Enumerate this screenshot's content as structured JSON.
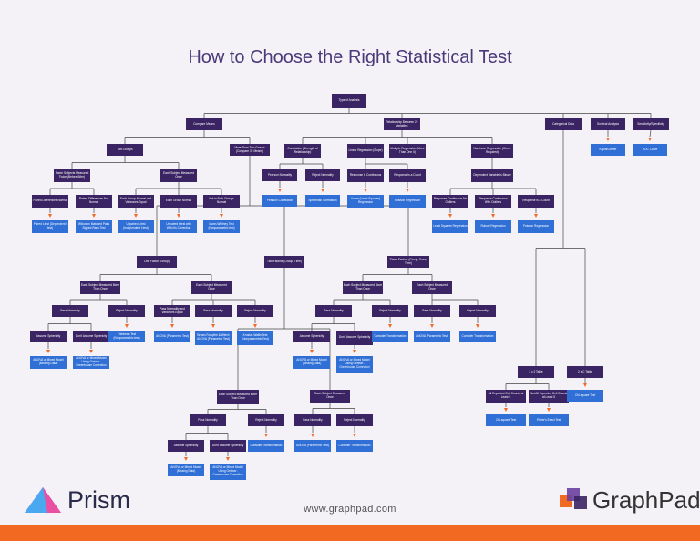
{
  "title": "How to Choose the Right Statistical Test",
  "url": "www.graphpad.com",
  "logos": {
    "prism": "Prism",
    "graphpad": "GraphPad"
  },
  "colors": {
    "node_dark": "#3b2463",
    "node_blue": "#2f6fd6",
    "accent": "#f26a21",
    "title": "#4a3a7a"
  },
  "nodes": {
    "root": "Type of Analysis",
    "compare_means": "Compare Means",
    "relationship": "Relationship Between 2+ Variables",
    "categorical": "Categorical Data",
    "survival": "Survival Analysis",
    "sens_spec": "Sensitivity/Specificity",
    "two_groups": "Two Groups",
    "more_than_two": "More Than Two Groups (Compare 3+ Means)",
    "correlation": "Correlation (Strength of Relationship)",
    "linreg": "Linear Regression (Slope)",
    "multreg": "Multiple Regression (More Than One X)",
    "nonlinreg": "Nonlinear Regression (Curve Required)",
    "kaplan": "Kaplan-Meier",
    "roc": "ROC Curve",
    "same_subj": "Same Subjects Measured Twice (Before/After)",
    "diff_subj": "Each Subject Measured Once",
    "pearson_norm": "Pearson Normality",
    "reject_norm_corr": "Reject Normality",
    "pearson": "Pearson Correlation",
    "spearman": "Spearman Correlation",
    "resp_continuous": "Response is Continuous",
    "resp_count": "Response is a Count",
    "linear_ls": "Linear (Least Squares) Regression",
    "poisson_reg_1": "Poisson Regression",
    "dep_binary": "Dependent Variable Is Binary",
    "resp_cont_2": "Response Continuous No Outliers",
    "resp_cont_out": "Response Continuous With Outliers",
    "resp_count_2": "Response is a Count",
    "least_sq": "Least Squares Regression",
    "robust_reg": "Robust Regression",
    "poisson_reg_2": "Poisson Regression",
    "paired_norm": "Paired Differences Normal",
    "paired_notnorm": "Paired Differences Not Normal",
    "paired_t": "Paired t-test (Dependent t test)",
    "wilcoxon": "Wilcoxon Matched Pairs Signed Rank Test",
    "equal_var": "Each Group Normal and Variances Equal",
    "unequal_var": "Each Group Normal",
    "not_normal_2": "Not in Both Groups Normal",
    "unpaired_t": "Unpaired t-test (Independent t test)",
    "welch_t": "Unpaired t-test with Welch's Correction",
    "mann_whitney": "Mann-Whitney Test (Nonparametric test)",
    "one_factor": "One Factor (Group)",
    "two_factors": "Two Factors (Group, Time)",
    "three_factors": "Three Factors (Group, Dose, Time)",
    "of_same": "Each Subject Measured More Than Once",
    "of_diff": "Each Subject Measured Once",
    "of_pass": "Pass Normality",
    "of_reject": "Reject Normality",
    "of_pass_eq": "Pass Normality and Variances Equal",
    "of_pass_2": "Pass Normality",
    "of_reject_2": "Reject Normality",
    "of_sph": "Assume Sphericity",
    "of_nosph": "Don't Assume Sphericity",
    "of_friedman": "Friedman Test (Nonparametric test)",
    "of_anova": "ANOVA (Parametric Test)",
    "of_brown": "Brown-Forsythe & Welch ANOVA (Parametric Test)",
    "of_kruskal": "Kruskal-Wallis Test (Nonparametric Test)",
    "of_rm1": "ANOVA or Mixed Model (Missing Data)",
    "of_rm2": "ANOVA or Mixed Model Using Geisser-Greenhouse Correction",
    "tf_same": "Each Subject Measured More Than Once",
    "tf_diff": "Each Subject Measured Once",
    "tf_pass": "Pass Normality",
    "tf_reject": "Reject Normality",
    "tf_pass_2": "Pass Normality",
    "tf_reject_2": "Reject Normality",
    "tf_sph": "Assume Sphericity",
    "tf_nosph": "Don't Assume Sphericity",
    "tf_transform": "Consider Transformation",
    "tf_anova": "ANOVA (Parametric Test)",
    "tf_transform_2": "Consider Transformation",
    "tf_rm1": "ANOVA or Mixed Model (Missing Data)",
    "tf_rm2": "ANOVA or Mixed Model Using Geisser-Greenhouse Correction",
    "th_same": "Each Subject Measured More Than Once",
    "th_diff": "Each Subject Measured Once",
    "th_pass": "Pass Normality",
    "th_reject": "Reject Normality",
    "th_pass_2": "Pass Normality",
    "th_reject_2": "Reject Normality",
    "th_sph": "Assume Sphericity",
    "th_nosph": "Don't Assume Sphericity",
    "th_transform": "Consider Transformation",
    "th_anova": "ANOVA (Parametric Test)",
    "th_transform_2": "Consider Transformation",
    "th_rm1": "ANOVA or Mixed Model (Missing Data)",
    "th_rm2": "ANOVA or Mixed Model Using Geisser-Greenhouse Correction",
    "table_2x2": "2 x 2 Table",
    "table_rxc": "2 x C Table",
    "all_expected": "All Expected Cell Counts at Least 5",
    "not_all_expected": "Not All Expected Cell Counts at Least 5",
    "chi_square": "Chi-square Test",
    "fisher": "Fisher's Exact Test",
    "chi_square_2": "Chi-square Test"
  }
}
